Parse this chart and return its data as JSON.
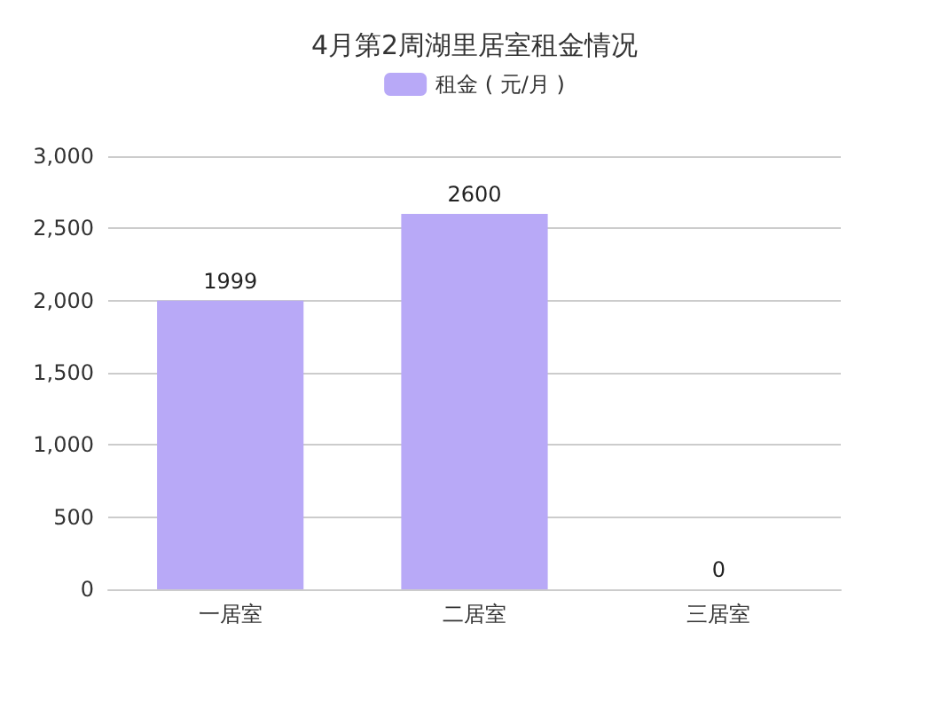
{
  "chart_data": {
    "type": "bar",
    "title": "4月第2周湖里居室租金情况",
    "categories": [
      "一居室",
      "二居室",
      "三居室"
    ],
    "series": [
      {
        "name": "租金 ( 元/月 )",
        "color": "#b8a9f7",
        "values": [
          1999,
          2600,
          0
        ]
      }
    ],
    "ylim": [
      0,
      3000
    ],
    "yticks": [
      0,
      500,
      {
        "value": 1000,
        "label": "1,000"
      },
      {
        "value": 1500,
        "label": "1,500"
      },
      {
        "value": 2000,
        "label": "2,000"
      },
      {
        "value": 2500,
        "label": "2,500"
      },
      {
        "value": 3000,
        "label": "3,000"
      }
    ],
    "grid": "y",
    "legend": "top",
    "data_labels": true
  }
}
